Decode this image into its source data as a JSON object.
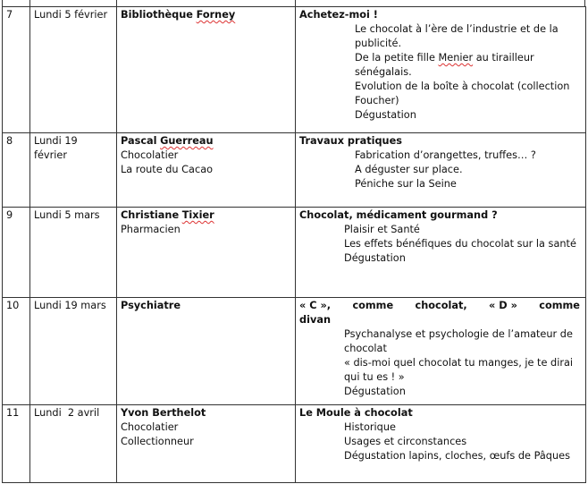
{
  "rows": [
    {
      "num": "7",
      "date": "Lundi 5 février",
      "speaker": "Bibliothèque",
      "speaker_spell": "Forney",
      "roles": [],
      "title": "Achetez-moi !",
      "items": [
        "Le chocolat à l’ère de l’industrie et de la publicité.",
        "De la petite fille",
        "Menier",
        "au tirailleur sénégalais.",
        "Evolution de la boîte à chocolat (collection Foucher)",
        "Dégustation"
      ]
    },
    {
      "num": "8",
      "date": "Lundi 19 février",
      "speaker": "Pascal",
      "speaker_spell": "Guerreau",
      "roles": [
        "Chocolatier",
        "La route du Cacao"
      ],
      "title": "Travaux pratiques",
      "items": [
        "Fabrication d’orangettes, truffes… ?",
        "A déguster sur place.",
        "Péniche sur la Seine"
      ]
    },
    {
      "num": "9",
      "date": "Lundi 5 mars",
      "speaker": "Christiane",
      "speaker_spell": "Tixier",
      "roles": [
        "Pharmacien"
      ],
      "title": "Chocolat, médicament gourmand ?",
      "items": [
        "Plaisir et Santé",
        "Les effets bénéfiques du chocolat sur la santé",
        "Dégustation"
      ]
    },
    {
      "num": "10",
      "date": "Lundi 19 mars",
      "speaker": "Psychiatre",
      "roles": [],
      "title_parts": [
        "« C »,",
        "comme",
        "chocolat,",
        "« D »",
        "comme"
      ],
      "title_end": "divan",
      "items": [
        "Psychanalyse et psychologie de l’amateur de chocolat",
        "« dis-moi quel chocolat tu manges, je te dirai qui tu es ! »",
        "Dégustation"
      ]
    },
    {
      "num": "11",
      "date": "Lundi  2 avril",
      "speaker": "Yvon Berthelot",
      "roles": [
        "Chocolatier",
        "Collectionneur"
      ],
      "title": "Le Moule à chocolat",
      "items": [
        "Historique",
        "Usages et circonstances",
        "Dégustation lapins, cloches, œufs de Pâques"
      ]
    }
  ]
}
